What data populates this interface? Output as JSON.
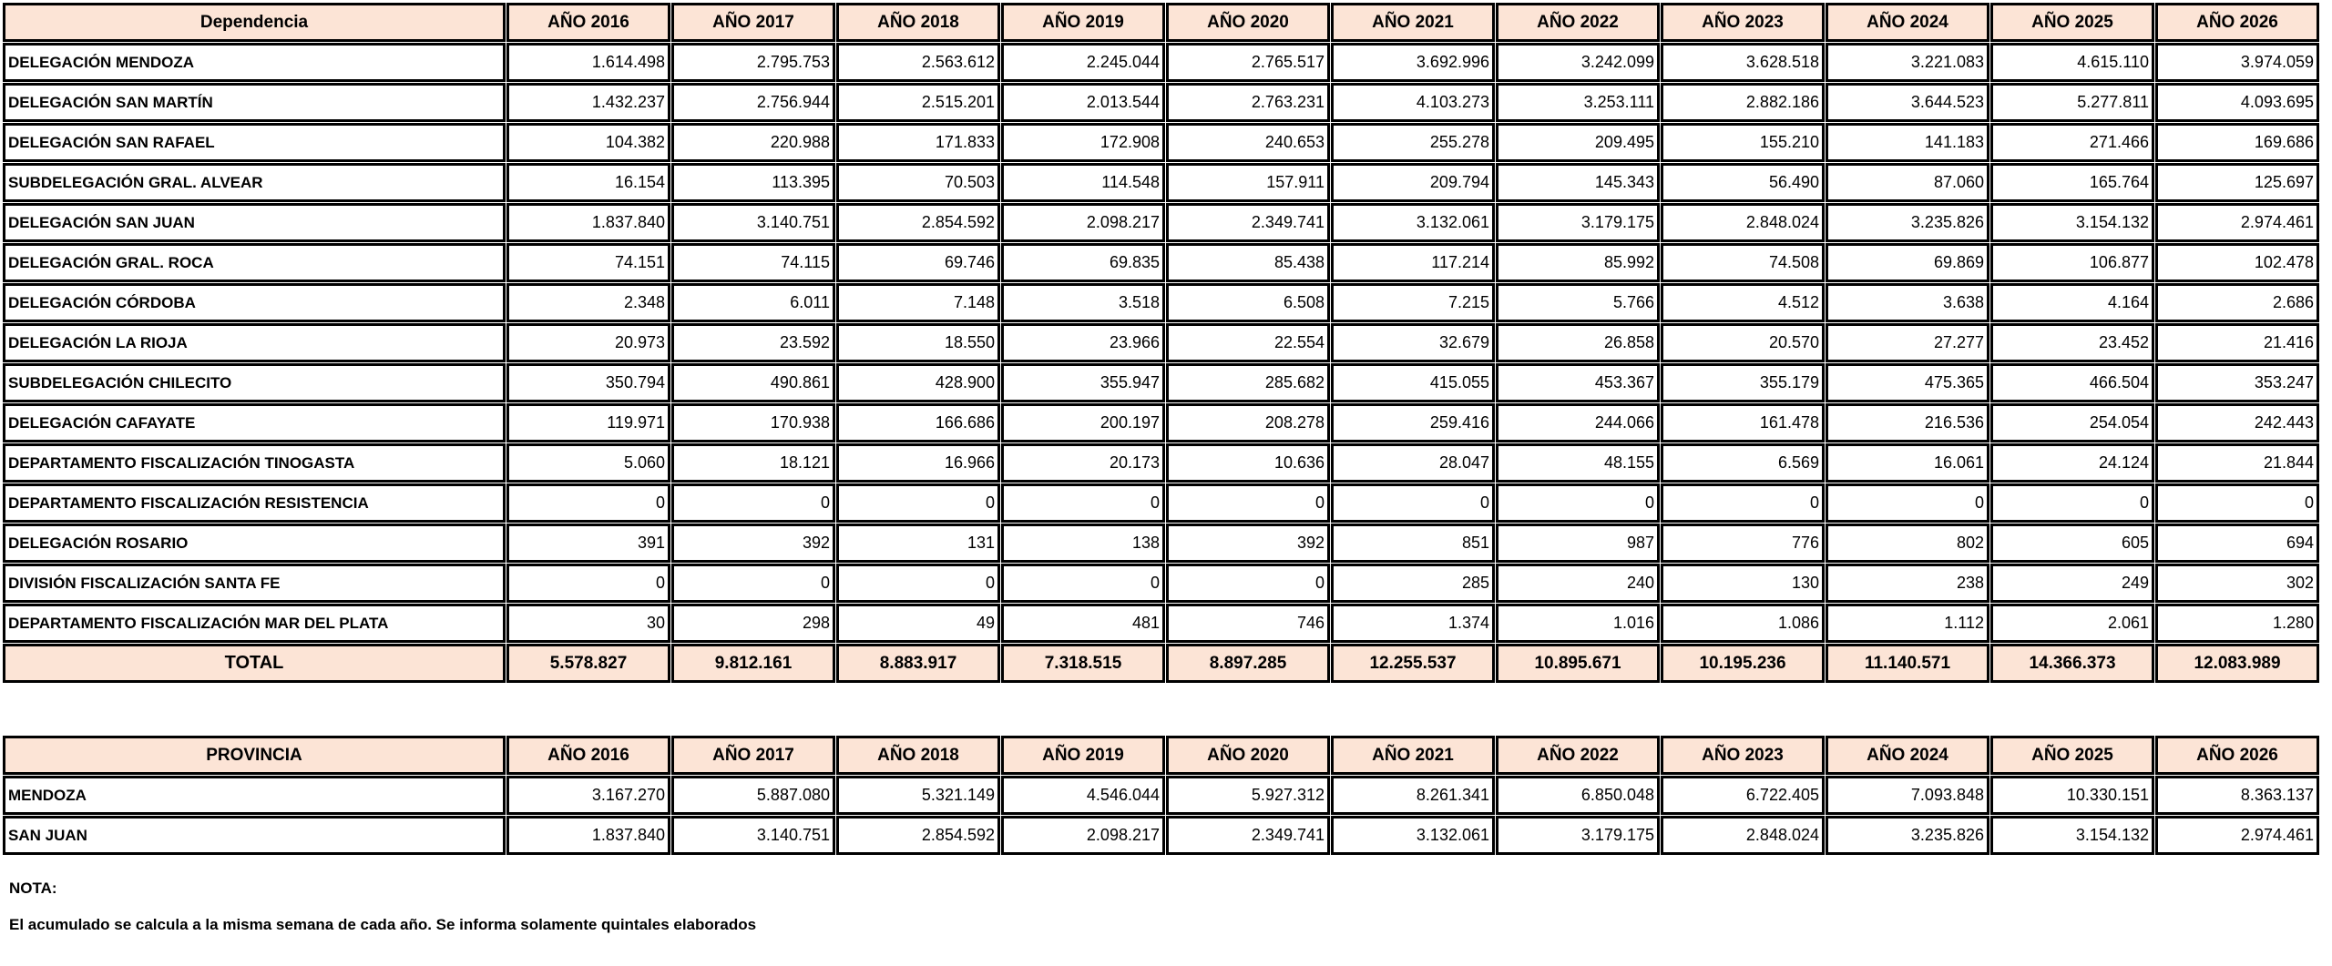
{
  "colors": {
    "header_fill": "#FCE4D6",
    "border": "#000000",
    "text": "#000000",
    "background": "#FFFFFF"
  },
  "tables": [
    {
      "name": "dependencia-table",
      "col0_header": "Dependencia",
      "years": [
        "AÑO 2016",
        "AÑO 2017",
        "AÑO 2018",
        "AÑO 2019",
        "AÑO 2020",
        "AÑO 2021",
        "AÑO 2022",
        "AÑO 2023",
        "AÑO 2024",
        "AÑO 2025",
        "AÑO 2026"
      ],
      "rows": [
        {
          "label": "DELEGACIÓN MENDOZA",
          "values": [
            "1.614.498",
            "2.795.753",
            "2.563.612",
            "2.245.044",
            "2.765.517",
            "3.692.996",
            "3.242.099",
            "3.628.518",
            "3.221.083",
            "4.615.110",
            "3.974.059"
          ]
        },
        {
          "label": "DELEGACIÓN SAN MARTÍN",
          "values": [
            "1.432.237",
            "2.756.944",
            "2.515.201",
            "2.013.544",
            "2.763.231",
            "4.103.273",
            "3.253.111",
            "2.882.186",
            "3.644.523",
            "5.277.811",
            "4.093.695"
          ]
        },
        {
          "label": "DELEGACIÓN SAN RAFAEL",
          "values": [
            "104.382",
            "220.988",
            "171.833",
            "172.908",
            "240.653",
            "255.278",
            "209.495",
            "155.210",
            "141.183",
            "271.466",
            "169.686"
          ]
        },
        {
          "label": "SUBDELEGACIÓN GRAL. ALVEAR",
          "values": [
            "16.154",
            "113.395",
            "70.503",
            "114.548",
            "157.911",
            "209.794",
            "145.343",
            "56.490",
            "87.060",
            "165.764",
            "125.697"
          ]
        },
        {
          "label": "DELEGACIÓN SAN JUAN",
          "values": [
            "1.837.840",
            "3.140.751",
            "2.854.592",
            "2.098.217",
            "2.349.741",
            "3.132.061",
            "3.179.175",
            "2.848.024",
            "3.235.826",
            "3.154.132",
            "2.974.461"
          ]
        },
        {
          "label": "DELEGACIÓN GRAL. ROCA",
          "values": [
            "74.151",
            "74.115",
            "69.746",
            "69.835",
            "85.438",
            "117.214",
            "85.992",
            "74.508",
            "69.869",
            "106.877",
            "102.478"
          ]
        },
        {
          "label": "DELEGACIÓN CÓRDOBA",
          "values": [
            "2.348",
            "6.011",
            "7.148",
            "3.518",
            "6.508",
            "7.215",
            "5.766",
            "4.512",
            "3.638",
            "4.164",
            "2.686"
          ]
        },
        {
          "label": "DELEGACIÓN LA RIOJA",
          "values": [
            "20.973",
            "23.592",
            "18.550",
            "23.966",
            "22.554",
            "32.679",
            "26.858",
            "20.570",
            "27.277",
            "23.452",
            "21.416"
          ]
        },
        {
          "label": "SUBDELEGACIÓN CHILECITO",
          "values": [
            "350.794",
            "490.861",
            "428.900",
            "355.947",
            "285.682",
            "415.055",
            "453.367",
            "355.179",
            "475.365",
            "466.504",
            "353.247"
          ]
        },
        {
          "label": "DELEGACIÓN CAFAYATE",
          "values": [
            "119.971",
            "170.938",
            "166.686",
            "200.197",
            "208.278",
            "259.416",
            "244.066",
            "161.478",
            "216.536",
            "254.054",
            "242.443"
          ]
        },
        {
          "label": "DEPARTAMENTO FISCALIZACIÓN TINOGASTA",
          "values": [
            "5.060",
            "18.121",
            "16.966",
            "20.173",
            "10.636",
            "28.047",
            "48.155",
            "6.569",
            "16.061",
            "24.124",
            "21.844"
          ]
        },
        {
          "label": "DEPARTAMENTO FISCALIZACIÓN RESISTENCIA",
          "values": [
            "0",
            "0",
            "0",
            "0",
            "0",
            "0",
            "0",
            "0",
            "0",
            "0",
            "0"
          ]
        },
        {
          "label": "DELEGACIÓN ROSARIO",
          "values": [
            "391",
            "392",
            "131",
            "138",
            "392",
            "851",
            "987",
            "776",
            "802",
            "605",
            "694"
          ]
        },
        {
          "label": "DIVISIÓN FISCALIZACIÓN SANTA FE",
          "values": [
            "0",
            "0",
            "0",
            "0",
            "0",
            "285",
            "240",
            "130",
            "238",
            "249",
            "302"
          ]
        },
        {
          "label": "DEPARTAMENTO FISCALIZACIÓN MAR DEL PLATA",
          "values": [
            "30",
            "298",
            "49",
            "481",
            "746",
            "1.374",
            "1.016",
            "1.086",
            "1.112",
            "2.061",
            "1.280"
          ]
        }
      ],
      "total": {
        "label": "TOTAL",
        "values": [
          "5.578.827",
          "9.812.161",
          "8.883.917",
          "7.318.515",
          "8.897.285",
          "12.255.537",
          "10.895.671",
          "10.195.236",
          "11.140.571",
          "14.366.373",
          "12.083.989"
        ]
      }
    },
    {
      "name": "provincia-table",
      "col0_header": "PROVINCIA",
      "years": [
        "AÑO 2016",
        "AÑO 2017",
        "AÑO 2018",
        "AÑO 2019",
        "AÑO 2020",
        "AÑO 2021",
        "AÑO 2022",
        "AÑO 2023",
        "AÑO 2024",
        "AÑO 2025",
        "AÑO 2026"
      ],
      "rows": [
        {
          "label": "MENDOZA",
          "values": [
            "3.167.270",
            "5.887.080",
            "5.321.149",
            "4.546.044",
            "5.927.312",
            "8.261.341",
            "6.850.048",
            "6.722.405",
            "7.093.848",
            "10.330.151",
            "8.363.137"
          ]
        },
        {
          "label": "SAN JUAN",
          "values": [
            "1.837.840",
            "3.140.751",
            "2.854.592",
            "2.098.217",
            "2.349.741",
            "3.132.061",
            "3.179.175",
            "2.848.024",
            "3.235.826",
            "3.154.132",
            "2.974.461"
          ]
        }
      ]
    }
  ],
  "notes": {
    "title": "NOTA:",
    "body": "El acumulado se calcula a la misma semana de cada año. Se informa solamente quintales elaborados"
  }
}
